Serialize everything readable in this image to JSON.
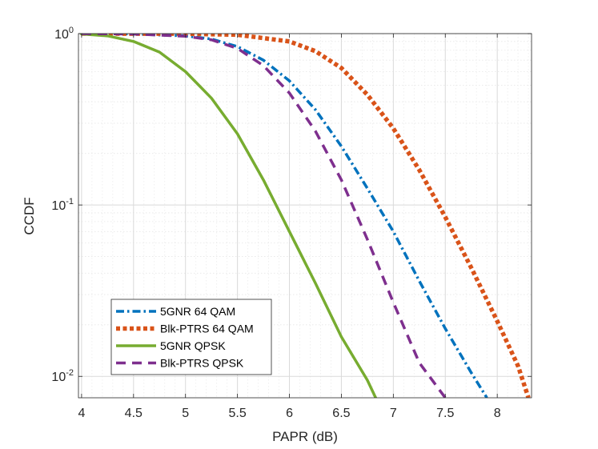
{
  "chart_data": {
    "type": "line",
    "title": "",
    "xlabel": "PAPR (dB)",
    "ylabel": "CCDF",
    "xscale": "linear",
    "yscale": "log",
    "xlim": [
      3.97,
      8.33
    ],
    "ylim": [
      0.0075,
      1
    ],
    "grid": true,
    "minor_grid": true,
    "legend_position": "bottom-left",
    "x_ticks": [
      4,
      4.5,
      5,
      5.5,
      6,
      6.5,
      7,
      7.5,
      8
    ],
    "x_tick_labels": [
      "4",
      "4.5",
      "5",
      "5.5",
      "6",
      "6.5",
      "7",
      "7.5",
      "8"
    ],
    "y_ticks": [
      {
        "value": 1,
        "base": "10",
        "exp": "0"
      },
      {
        "value": 0.1,
        "base": "10",
        "exp": "-1"
      },
      {
        "value": 0.01,
        "base": "10",
        "exp": "-2"
      }
    ],
    "series": [
      {
        "name": "5GNR  64 QAM",
        "color": "#0072BD",
        "style": "dashdot",
        "x": [
          4.0,
          4.5,
          5.0,
          5.25,
          5.5,
          5.75,
          6.0,
          6.25,
          6.5,
          6.75,
          7.0,
          7.25,
          7.5,
          7.75,
          7.9
        ],
        "y": [
          1.0,
          0.995,
          0.97,
          0.93,
          0.84,
          0.7,
          0.53,
          0.36,
          0.22,
          0.125,
          0.07,
          0.036,
          0.019,
          0.0105,
          0.0075
        ]
      },
      {
        "name": "Blk-PTRS  64 QAM",
        "color": "#D95319",
        "style": "dotted",
        "x": [
          4.0,
          5.0,
          5.5,
          6.0,
          6.25,
          6.5,
          6.75,
          7.0,
          7.25,
          7.5,
          7.75,
          8.0,
          8.2,
          8.3
        ],
        "y": [
          1.0,
          0.998,
          0.985,
          0.9,
          0.79,
          0.63,
          0.44,
          0.28,
          0.16,
          0.085,
          0.043,
          0.021,
          0.0115,
          0.0075
        ]
      },
      {
        "name": "5GNR  QPSK",
        "color": "#77AC30",
        "style": "solid",
        "x": [
          4.0,
          4.25,
          4.5,
          4.75,
          5.0,
          5.25,
          5.5,
          5.75,
          6.0,
          6.25,
          6.5,
          6.75,
          6.83
        ],
        "y": [
          0.995,
          0.97,
          0.9,
          0.78,
          0.6,
          0.42,
          0.26,
          0.14,
          0.07,
          0.035,
          0.017,
          0.0095,
          0.0075
        ]
      },
      {
        "name": "Blk-PTRS  QPSK",
        "color": "#7E2F8E",
        "style": "dashed",
        "x": [
          4.0,
          4.5,
          5.0,
          5.25,
          5.5,
          5.75,
          6.0,
          6.25,
          6.5,
          6.75,
          7.0,
          7.25,
          7.5
        ],
        "y": [
          1.0,
          0.995,
          0.965,
          0.92,
          0.82,
          0.65,
          0.45,
          0.27,
          0.14,
          0.063,
          0.027,
          0.012,
          0.0075
        ]
      }
    ]
  }
}
